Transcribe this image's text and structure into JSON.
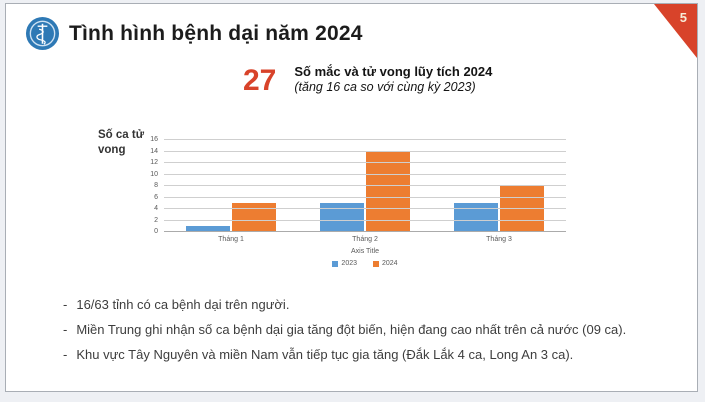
{
  "slide": {
    "page_number": "5",
    "bullet_marker": "-",
    "header": {
      "title": "Tình hình bệnh dại năm 2024",
      "logo": "ministry-of-health-emblem"
    },
    "stat": {
      "value": "27",
      "label": "Số mắc và tử vong lũy tích 2024",
      "sublabel": "(tăng 16 ca so với cùng kỳ 2023)"
    },
    "bullets": [
      "16/63 tỉnh có ca bệnh dại trên người.",
      "Miền Trung ghi nhận số ca bệnh dại gia tăng đột biến, hiện đang cao nhất trên cả nước (09 ca).",
      "Khu vực Tây Nguyên và miền Nam vẫn tiếp tục gia tăng (Đắk Lắk 4 ca, Long An 3 ca)."
    ],
    "colors": {
      "accent_red": "#d8432a",
      "logo_blue": "#2e79b5",
      "bar_blue": "#5B9BD5",
      "bar_orange": "#ED7D31"
    }
  },
  "chart_data": {
    "type": "bar",
    "title": "",
    "categories": [
      "Tháng 1",
      "Tháng 2",
      "Tháng 3"
    ],
    "series": [
      {
        "name": "2023",
        "color": "#5B9BD5",
        "values": [
          1,
          5,
          5
        ]
      },
      {
        "name": "2024",
        "color": "#ED7D31",
        "values": [
          5,
          14,
          8
        ]
      }
    ],
    "xlabel": "Axis Title",
    "ylabel": "Số ca tử vong",
    "ylim": [
      0,
      16
    ],
    "ytick_step": 2,
    "grid": true,
    "legend_position": "bottom"
  }
}
